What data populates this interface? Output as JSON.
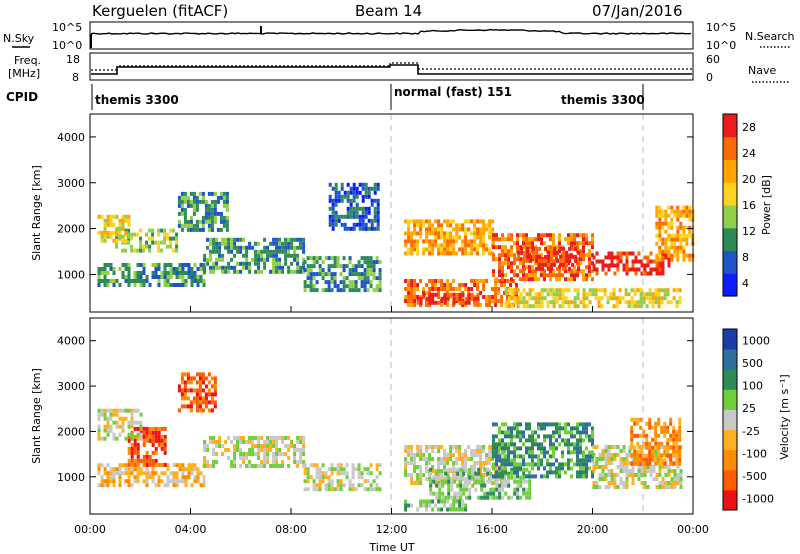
{
  "header": {
    "site": "Kerguelen (fitACF)",
    "beam": "Beam 14",
    "date": "07/Jan/2016"
  },
  "status_panel": {
    "nsky_label": "N.Sky",
    "noise_ticks": [
      "10^5",
      "10^0"
    ],
    "nsearch_label": "N.Search",
    "freq_label_1": "Freq.",
    "freq_label_2": "[MHz]",
    "freq_ticks": [
      "18",
      "8"
    ],
    "nave_label": "Nave",
    "nave_ticks": [
      "60",
      "0"
    ],
    "cpid_label": "CPID"
  },
  "cpid_segments": [
    {
      "label": "themis 3300",
      "start_hour": 0.0
    },
    {
      "label": "normal (fast) 151",
      "start_hour": 12.0
    },
    {
      "label": "themis 3300",
      "start_hour": 22.0
    }
  ],
  "colors": {
    "power_scale": [
      "#0a1eff",
      "#1e55c8",
      "#2e8b57",
      "#8fcf4a",
      "#ffd21e",
      "#ffa500",
      "#ff6a00",
      "#ee1b1b"
    ],
    "velocity_scale": [
      "#1a3ea8",
      "#2e6f9e",
      "#2e8b57",
      "#6fcf3a",
      "#c8c8c8",
      "#ffb020",
      "#ff8c00",
      "#ff5a00",
      "#ee1010"
    ]
  },
  "chart_data": [
    {
      "type": "heatmap",
      "panel": "power",
      "xlabel": "Time UT",
      "ylabel": "Slant Range [km]",
      "xlim_hours": [
        0,
        24
      ],
      "ylim_km": [
        180,
        4500
      ],
      "y_ticks": [
        "1000",
        "2000",
        "3000",
        "4000"
      ],
      "colorbar_label": "Power [dB]",
      "colorbar_ticks": [
        "4",
        "8",
        "12",
        "16",
        "20",
        "24",
        "28"
      ],
      "regions": [
        {
          "t0": 0.3,
          "t1": 4.5,
          "r0": 800,
          "r1": 1250,
          "level": 2
        },
        {
          "t0": 4.5,
          "t1": 8.5,
          "r0": 1100,
          "r1": 1800,
          "level": 2
        },
        {
          "t0": 8.5,
          "t1": 11.5,
          "r0": 700,
          "r1": 1400,
          "level": 2
        },
        {
          "t0": 1.0,
          "t1": 3.5,
          "r0": 1500,
          "r1": 2000,
          "level": 3
        },
        {
          "t0": 0.3,
          "t1": 1.5,
          "r0": 1700,
          "r1": 2300,
          "level": 4
        },
        {
          "t0": 3.5,
          "t1": 5.5,
          "r0": 2000,
          "r1": 2800,
          "level": 2
        },
        {
          "t0": 9.5,
          "t1": 11.5,
          "r0": 2000,
          "r1": 3000,
          "level": 1
        },
        {
          "t0": 12.5,
          "t1": 16.0,
          "r0": 1500,
          "r1": 2200,
          "level": 5
        },
        {
          "t0": 12.5,
          "t1": 17.0,
          "r0": 300,
          "r1": 900,
          "level": 6
        },
        {
          "t0": 13.0,
          "t1": 15.5,
          "r0": 350,
          "r1": 600,
          "level": 7
        },
        {
          "t0": 16.0,
          "t1": 20.0,
          "r0": 900,
          "r1": 1900,
          "level": 6
        },
        {
          "t0": 17.0,
          "t1": 19.5,
          "r0": 1100,
          "r1": 1600,
          "level": 7
        },
        {
          "t0": 20.0,
          "t1": 23.0,
          "r0": 1000,
          "r1": 1500,
          "level": 7
        },
        {
          "t0": 22.5,
          "t1": 24.0,
          "r0": 1300,
          "r1": 2500,
          "level": 5
        },
        {
          "t0": 16.5,
          "t1": 23.5,
          "r0": 300,
          "r1": 700,
          "level": 4
        }
      ]
    },
    {
      "type": "heatmap",
      "panel": "velocity",
      "xlabel": "Time UT",
      "ylabel": "Slant Range [km]",
      "xlim_hours": [
        0,
        24
      ],
      "ylim_km": [
        180,
        4500
      ],
      "x_ticks": [
        "00:00",
        "04:00",
        "08:00",
        "12:00",
        "16:00",
        "20:00",
        "00:00"
      ],
      "y_ticks": [
        "1000",
        "2000",
        "3000",
        "4000"
      ],
      "colorbar_label": "Velocity [m s⁻¹]",
      "colorbar_ticks": [
        "1000",
        "500",
        "100",
        "25",
        "-25",
        "-100",
        "-500",
        "-1000"
      ],
      "regions": [
        {
          "t0": 0.3,
          "t1": 4.5,
          "r0": 800,
          "r1": 1300,
          "level": 5
        },
        {
          "t0": 1.5,
          "t1": 3.0,
          "r0": 1300,
          "r1": 2100,
          "level": 7
        },
        {
          "t0": 4.5,
          "t1": 8.5,
          "r0": 1200,
          "r1": 1900,
          "level": 4
        },
        {
          "t0": 8.5,
          "t1": 11.5,
          "r0": 700,
          "r1": 1300,
          "level": 4
        },
        {
          "t0": 0.3,
          "t1": 2.0,
          "r0": 1800,
          "r1": 2500,
          "level": 4
        },
        {
          "t0": 3.5,
          "t1": 5.0,
          "r0": 2500,
          "r1": 3300,
          "level": 7
        },
        {
          "t0": 12.5,
          "t1": 16.5,
          "r0": 900,
          "r1": 1700,
          "level": 4
        },
        {
          "t0": 13.5,
          "t1": 17.5,
          "r0": 500,
          "r1": 1200,
          "level": 3
        },
        {
          "t0": 16.0,
          "t1": 20.0,
          "r0": 1000,
          "r1": 2200,
          "level": 2
        },
        {
          "t0": 20.0,
          "t1": 23.5,
          "r0": 800,
          "r1": 1700,
          "level": 4
        },
        {
          "t0": 21.5,
          "t1": 23.5,
          "r0": 1300,
          "r1": 2300,
          "level": 6
        },
        {
          "t0": 12.5,
          "t1": 15.0,
          "r0": 300,
          "r1": 500,
          "level": 3
        }
      ]
    }
  ]
}
